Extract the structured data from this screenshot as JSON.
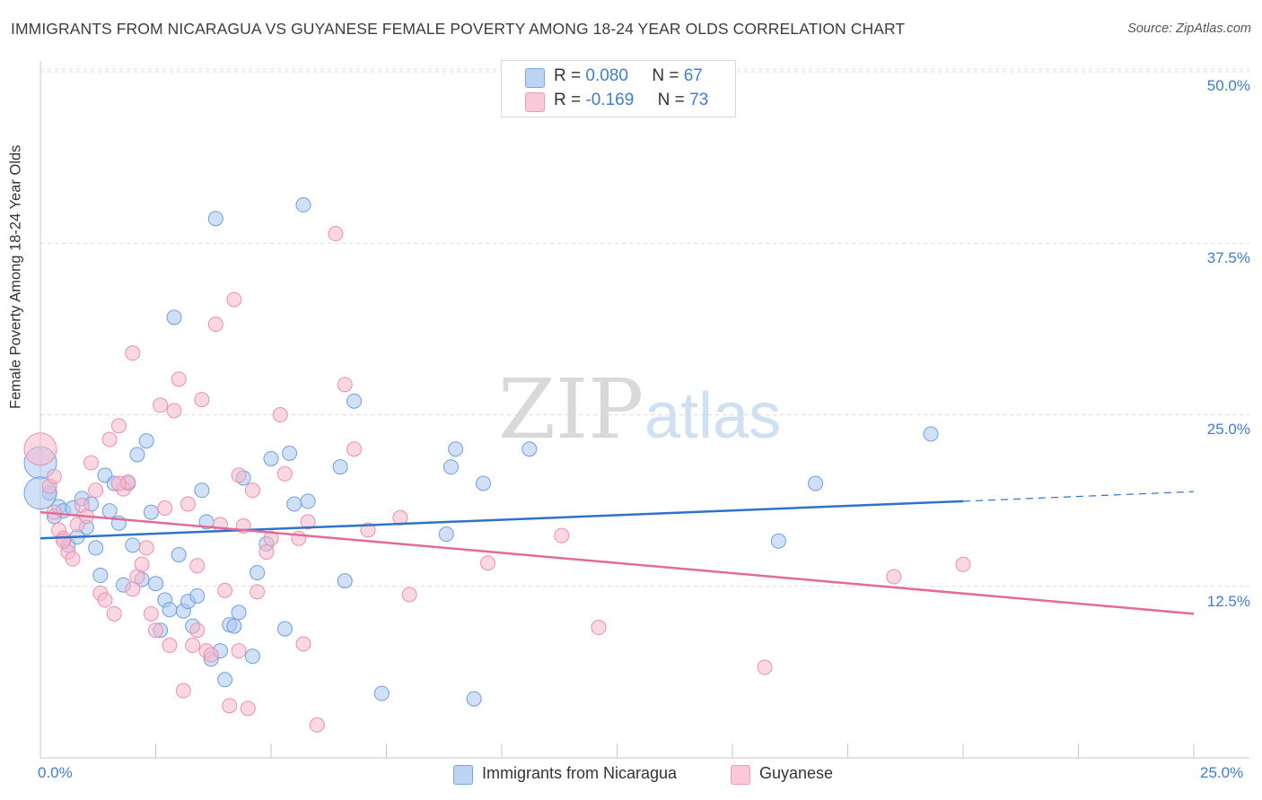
{
  "title": "IMMIGRANTS FROM NICARAGUA VS GUYANESE FEMALE POVERTY AMONG 18-24 YEAR OLDS CORRELATION CHART",
  "source": "Source: ZipAtlas.com",
  "watermark": {
    "zip": "ZIP",
    "atlas": "atlas"
  },
  "legend": {
    "rows": [
      {
        "r_label": "R =",
        "r_value": "0.080",
        "n_label": "N =",
        "n_value": "67"
      },
      {
        "r_label": "R =",
        "r_value": "-0.169",
        "n_label": "N =",
        "n_value": "73"
      }
    ]
  },
  "colors": {
    "blue_fill": "#a9c6ef",
    "blue_stroke": "#6f9fe0",
    "blue_line": "#2f72c9",
    "pink_fill": "#f6b8cc",
    "pink_stroke": "#ee8eae",
    "pink_line": "#e46a97",
    "axis_text": "#3f7dd1",
    "grid": "#dcdcdc"
  },
  "chart_data": {
    "type": "scatter",
    "title": "IMMIGRANTS FROM NICARAGUA VS GUYANESE FEMALE POVERTY AMONG 18-24 YEAR OLDS CORRELATION CHART",
    "xlabel": "",
    "ylabel": "Female Poverty Among 18-24 Year Olds",
    "xlim": [
      0,
      25
    ],
    "ylim": [
      0,
      50
    ],
    "x_tick_labels": [
      "0.0%",
      "25.0%"
    ],
    "y_ticks": [
      12.5,
      25.0,
      37.5,
      50.0
    ],
    "y_tick_labels": [
      "12.5%",
      "25.0%",
      "37.5%",
      "50.0%"
    ],
    "grid": "horizontal dashed",
    "legend_position": "top-center",
    "series": [
      {
        "name": "Immigrants from Nicaragua",
        "color": "#a9c6ef",
        "trend": {
          "x": [
            0,
            20
          ],
          "y": [
            16.0,
            18.7
          ],
          "dashed_to": [
            25,
            19.4
          ]
        },
        "points": [
          [
            0.0,
            21.5
          ],
          [
            0.2,
            19.3
          ],
          [
            0.3,
            17.6
          ],
          [
            0.4,
            18.3
          ],
          [
            0.5,
            18.0
          ],
          [
            0.6,
            15.5
          ],
          [
            0.7,
            18.2
          ],
          [
            0.8,
            16.1
          ],
          [
            0.9,
            18.9
          ],
          [
            1.0,
            16.8
          ],
          [
            1.1,
            18.5
          ],
          [
            1.2,
            15.3
          ],
          [
            1.3,
            13.3
          ],
          [
            1.4,
            20.6
          ],
          [
            1.5,
            18.0
          ],
          [
            1.6,
            20.0
          ],
          [
            1.7,
            17.1
          ],
          [
            1.8,
            12.6
          ],
          [
            1.9,
            20.0
          ],
          [
            2.0,
            15.5
          ],
          [
            2.1,
            22.1
          ],
          [
            2.2,
            13.0
          ],
          [
            2.3,
            23.1
          ],
          [
            2.4,
            17.9
          ],
          [
            2.5,
            12.7
          ],
          [
            2.6,
            9.3
          ],
          [
            2.7,
            11.5
          ],
          [
            2.8,
            10.8
          ],
          [
            2.9,
            32.1
          ],
          [
            3.0,
            14.8
          ],
          [
            3.1,
            10.7
          ],
          [
            3.2,
            11.4
          ],
          [
            3.3,
            9.6
          ],
          [
            3.4,
            11.8
          ],
          [
            3.5,
            19.5
          ],
          [
            3.6,
            17.2
          ],
          [
            3.7,
            7.2
          ],
          [
            3.8,
            39.3
          ],
          [
            3.9,
            7.8
          ],
          [
            4.0,
            5.7
          ],
          [
            4.1,
            9.7
          ],
          [
            4.2,
            9.6
          ],
          [
            4.3,
            10.6
          ],
          [
            4.4,
            20.4
          ],
          [
            4.6,
            7.4
          ],
          [
            4.7,
            13.5
          ],
          [
            4.9,
            15.6
          ],
          [
            5.0,
            21.8
          ],
          [
            5.3,
            9.4
          ],
          [
            5.4,
            22.2
          ],
          [
            5.5,
            18.5
          ],
          [
            5.7,
            40.3
          ],
          [
            5.8,
            18.7
          ],
          [
            6.5,
            21.2
          ],
          [
            6.6,
            12.9
          ],
          [
            6.8,
            26.0
          ],
          [
            7.4,
            4.7
          ],
          [
            8.8,
            16.3
          ],
          [
            8.9,
            21.2
          ],
          [
            9.0,
            22.5
          ],
          [
            9.4,
            4.3
          ],
          [
            9.6,
            20.0
          ],
          [
            10.6,
            22.5
          ],
          [
            16.0,
            15.8
          ],
          [
            16.8,
            20.0
          ],
          [
            19.3,
            23.6
          ],
          [
            0.0,
            19.3
          ]
        ]
      },
      {
        "name": "Guyanese",
        "color": "#f6b8cc",
        "trend": {
          "x": [
            0,
            25
          ],
          "y": [
            17.9,
            10.5
          ]
        },
        "points": [
          [
            0.0,
            22.5
          ],
          [
            0.2,
            19.8
          ],
          [
            0.3,
            17.9
          ],
          [
            0.4,
            16.6
          ],
          [
            0.5,
            16.0
          ],
          [
            0.6,
            15.0
          ],
          [
            0.7,
            14.5
          ],
          [
            0.8,
            17.0
          ],
          [
            0.9,
            18.4
          ],
          [
            1.0,
            17.6
          ],
          [
            1.1,
            21.5
          ],
          [
            1.2,
            19.5
          ],
          [
            1.3,
            12.0
          ],
          [
            1.4,
            11.5
          ],
          [
            1.5,
            23.2
          ],
          [
            1.6,
            10.5
          ],
          [
            1.7,
            24.2
          ],
          [
            1.8,
            19.6
          ],
          [
            1.9,
            20.1
          ],
          [
            2.0,
            29.5
          ],
          [
            2.1,
            13.2
          ],
          [
            2.2,
            14.1
          ],
          [
            2.3,
            15.3
          ],
          [
            2.4,
            10.5
          ],
          [
            2.5,
            9.3
          ],
          [
            2.6,
            25.7
          ],
          [
            2.7,
            18.2
          ],
          [
            2.8,
            8.2
          ],
          [
            2.9,
            25.3
          ],
          [
            3.0,
            27.6
          ],
          [
            3.1,
            4.9
          ],
          [
            3.2,
            18.5
          ],
          [
            3.3,
            8.2
          ],
          [
            3.4,
            14.0
          ],
          [
            3.5,
            26.1
          ],
          [
            3.6,
            7.8
          ],
          [
            3.7,
            7.5
          ],
          [
            3.8,
            31.6
          ],
          [
            3.9,
            17.0
          ],
          [
            4.0,
            12.2
          ],
          [
            4.1,
            3.8
          ],
          [
            4.2,
            33.4
          ],
          [
            4.3,
            20.6
          ],
          [
            4.4,
            16.9
          ],
          [
            4.5,
            3.6
          ],
          [
            4.6,
            19.5
          ],
          [
            4.7,
            12.1
          ],
          [
            4.9,
            15.0
          ],
          [
            5.0,
            16.0
          ],
          [
            5.2,
            25.0
          ],
          [
            5.3,
            20.7
          ],
          [
            5.6,
            16.0
          ],
          [
            5.7,
            8.3
          ],
          [
            5.8,
            17.2
          ],
          [
            6.0,
            2.4
          ],
          [
            6.4,
            38.2
          ],
          [
            6.6,
            27.2
          ],
          [
            6.8,
            22.5
          ],
          [
            7.1,
            16.6
          ],
          [
            7.8,
            17.5
          ],
          [
            8.0,
            11.9
          ],
          [
            9.7,
            14.2
          ],
          [
            11.3,
            16.2
          ],
          [
            12.1,
            9.5
          ],
          [
            15.7,
            6.6
          ],
          [
            18.5,
            13.2
          ],
          [
            20.0,
            14.1
          ],
          [
            0.5,
            15.8
          ],
          [
            1.7,
            20.0
          ],
          [
            3.4,
            9.3
          ],
          [
            4.3,
            7.8
          ],
          [
            2.0,
            12.3
          ],
          [
            0.3,
            20.5
          ]
        ]
      }
    ]
  },
  "x_axis": {
    "left_label": "0.0%",
    "right_label": "25.0%"
  },
  "bottom_legend": [
    "Immigrants from Nicaragua",
    "Guyanese"
  ]
}
